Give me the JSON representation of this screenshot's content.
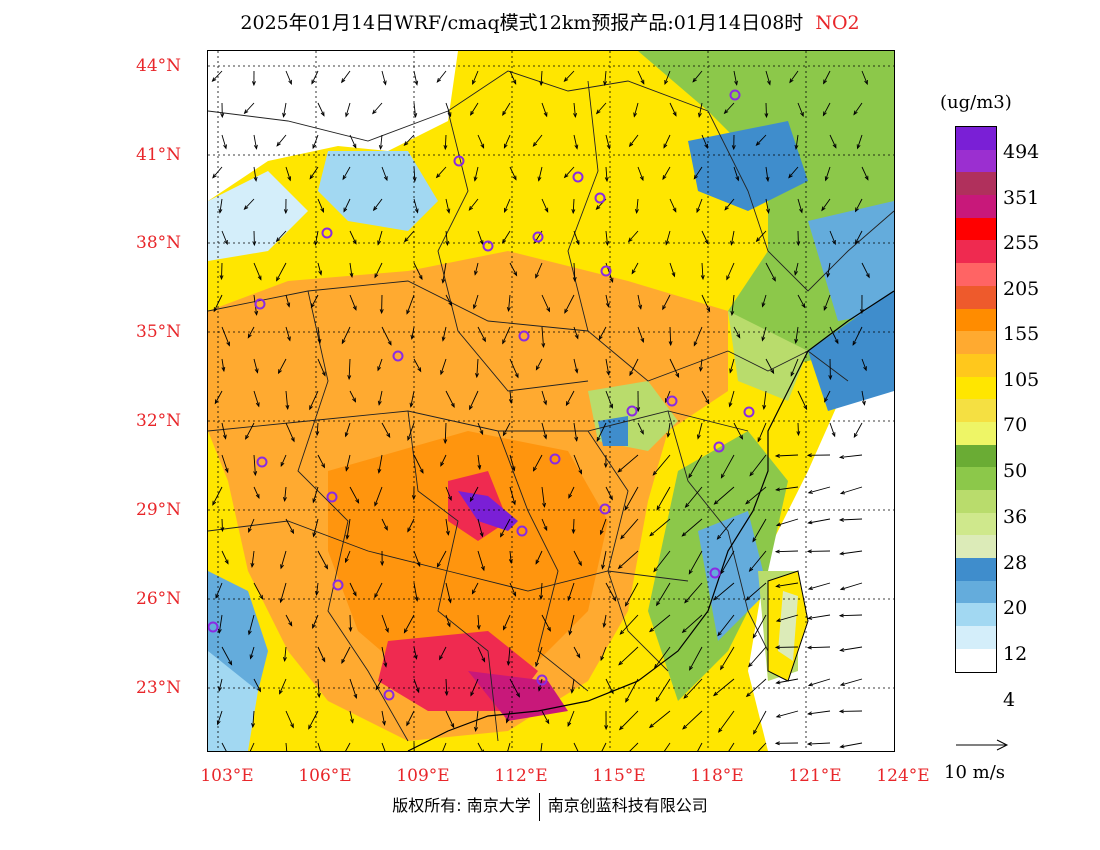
{
  "title": "2025年01月14日WRF/cmaq模式12km预报产品:01月14日08时",
  "species": "NO2",
  "lat_labels": [
    "44°N",
    "41°N",
    "38°N",
    "35°N",
    "32°N",
    "29°N",
    "26°N",
    "23°N"
  ],
  "lon_labels": [
    "103°E",
    "106°E",
    "109°E",
    "112°E",
    "115°E",
    "118°E",
    "121°E",
    "124°E"
  ],
  "unit": "(ug/m3)",
  "colorbar": {
    "colors": [
      "#7a1fd6",
      "#9b2fd0",
      "#b0305c",
      "#c8187a",
      "#ff0000",
      "#ef2a50",
      "#ff6464",
      "#ee5a2c",
      "#ff8c00",
      "#ffaa30",
      "#ffc81c",
      "#ffe600",
      "#f5e042",
      "#eef566",
      "#6aac34",
      "#8cc84a",
      "#b9dc6c",
      "#cfe88c",
      "#dcebb8",
      "#3f8dcc",
      "#64acdc",
      "#a2d8f2",
      "#d4eefa",
      "#ffffff"
    ],
    "ticks": [
      "494",
      "351",
      "255",
      "205",
      "155",
      "105",
      "70",
      "50",
      "36",
      "28",
      "20",
      "12",
      "4"
    ]
  },
  "wind_reference": "10 m/s",
  "copyright_left": "版权所有: 南京大学",
  "copyright_right": "南京创蓝科技有限公司"
}
